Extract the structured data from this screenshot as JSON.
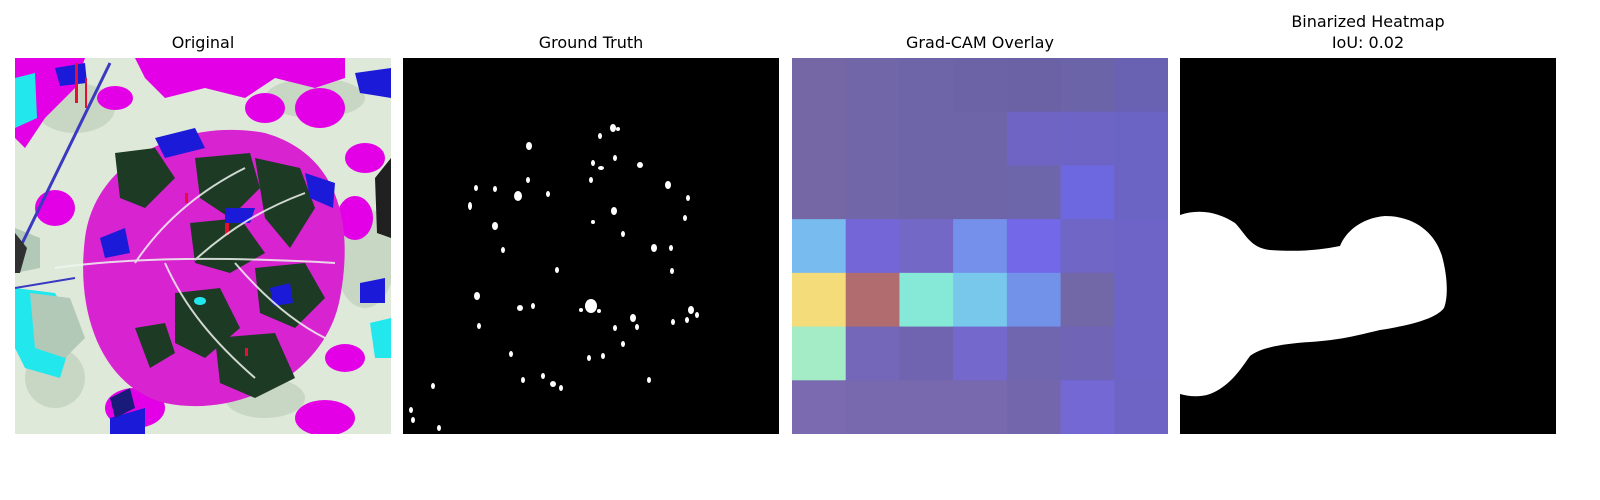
{
  "panels": [
    {
      "title": "Original"
    },
    {
      "title": "Ground Truth"
    },
    {
      "title": "Grad-CAM Overlay"
    },
    {
      "title": "Binarized Heatmap",
      "subtitle": "IoU: 0.02"
    }
  ],
  "colors": {
    "background": "#ffffff",
    "mask_background": "#000000",
    "mask_foreground": "#ffffff",
    "overlay_base": "#6f68a8"
  },
  "gradcam": {
    "grid_rows": 7,
    "grid_cols": 7,
    "cells": [
      [
        "#7567a6",
        "#7066a8",
        "#6d65a8",
        "#6c63a6",
        "#6a62a4",
        "#6c64a8",
        "#6962b2"
      ],
      [
        "#7567a6",
        "#7066a8",
        "#6d65a8",
        "#6d65a8",
        "#6f64c4",
        "#6e64c6",
        "#6b64c4"
      ],
      [
        "#7567a6",
        "#7066a8",
        "#6d65a8",
        "#6d65a8",
        "#6e66aa",
        "#6e68e0",
        "#6b64c4"
      ],
      [
        "#78bbee",
        "#7466d6",
        "#7468c6",
        "#7490ea",
        "#7268e8",
        "#7066c6",
        "#6e64c8"
      ],
      [
        "#f4dc7a",
        "#b06c6e",
        "#86e8d6",
        "#78c8ec",
        "#7292ea",
        "#7268a8",
        "#6e64c8"
      ],
      [
        "#a4ecc6",
        "#7466b8",
        "#7064b0",
        "#7468cc",
        "#7066b0",
        "#7064b6",
        "#6e64c8"
      ],
      [
        "#7c6ab0",
        "#7868ae",
        "#7868ae",
        "#7868ae",
        "#7466ac",
        "#7468d4",
        "#6e64c6"
      ]
    ]
  }
}
